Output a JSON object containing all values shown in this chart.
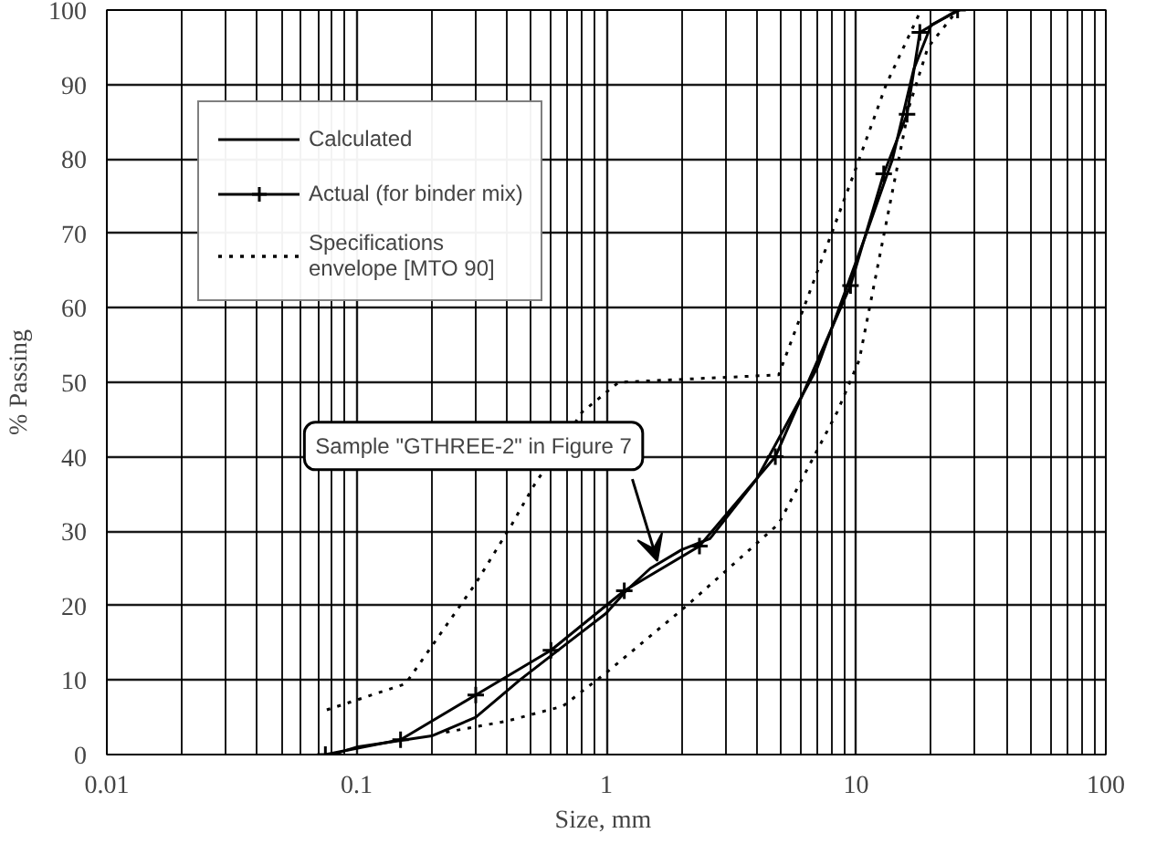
{
  "chart_data": {
    "type": "line",
    "xlabel": "Size,  mm",
    "ylabel": "% Passing",
    "log": "x",
    "grid": true,
    "legend": "top left",
    "xlim": [
      0.01,
      100
    ],
    "xticks": [
      0.01,
      0.1,
      1,
      10,
      100
    ],
    "ylim": [
      0,
      100
    ],
    "yticks": [
      0,
      10,
      20,
      30,
      40,
      50,
      60,
      70,
      80,
      90,
      100
    ],
    "series": [
      {
        "name": "Calculated",
        "color": "#000000",
        "line_style": "solid",
        "marker": "none",
        "x": [
          0.08,
          0.1,
          0.2,
          0.3,
          0.45,
          0.7,
          1,
          1.2,
          1.5,
          2,
          2.6,
          4,
          7,
          11,
          14,
          17,
          20,
          26
        ],
        "values": [
          0,
          1,
          2.5,
          5,
          10,
          15,
          19,
          22,
          25,
          27.5,
          29,
          37,
          52,
          70,
          80,
          92,
          98,
          100
        ]
      },
      {
        "name": "Actual (for binder mix)",
        "color": "#000000",
        "line_style": "solid",
        "marker": "cross",
        "x": [
          0.075,
          0.15,
          0.3,
          0.6,
          1.18,
          2.36,
          4.75,
          9.5,
          12.9,
          16,
          18,
          25.5
        ],
        "values": [
          0,
          2,
          8,
          14,
          22,
          28,
          40,
          63,
          78,
          86,
          97,
          100
        ]
      },
      {
        "name": "Specifications\nenvelope [MTO 90]",
        "color": "#000000",
        "line_style": "dotted",
        "marker": "none",
        "x": [
          0.076,
          0.157,
          0.3,
          0.42,
          0.51,
          0.8,
          1.12,
          4.9,
          9.8,
          13.2,
          18.2
        ],
        "values": [
          6,
          9.5,
          23,
          31,
          36,
          46,
          50,
          51,
          78,
          90,
          100
        ]
      },
      {
        "color": "#000000",
        "line_style": "dotted",
        "marker": "none",
        "x": [
          0.228,
          0.4,
          0.67,
          1,
          2.1,
          4.9,
          8.4,
          10.3,
          16.3,
          19.4,
          25.5
        ],
        "values": [
          3,
          4.5,
          6.5,
          11,
          20,
          31,
          46,
          53,
          87,
          95,
          100
        ]
      }
    ],
    "annotations": [
      {
        "text": "Sample \"GTHREE-2\" in Figure 7",
        "x": 1.6,
        "y": 26
      }
    ]
  }
}
